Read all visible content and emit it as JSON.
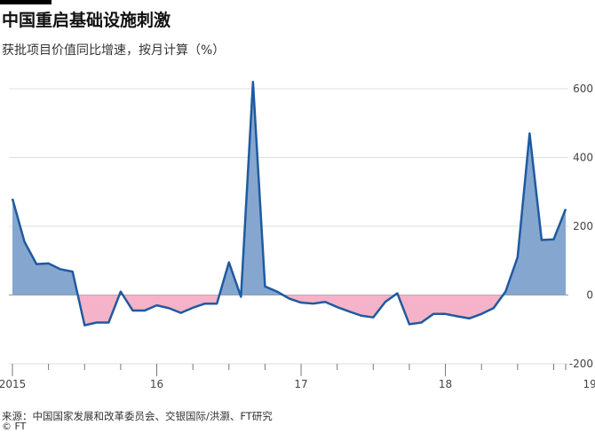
{
  "title": "中国重启基础设施刺激",
  "subtitle": "获批项目价值同比增速，按月计算（%）",
  "source": "来源：中国国家发展和改革委员会、交银国际/洪灏、FT研究",
  "credit": "© FT",
  "colors": {
    "line": "#1f5aa0",
    "positive_fill": "#85a7cf",
    "negative_fill": "#f4b3c8",
    "grid": "#dcdcdc",
    "zero_line": "#999999"
  },
  "chart_data": {
    "type": "area",
    "title": "中国重启基础设施刺激",
    "subtitle": "获批项目价值同比增速，按月计算（%）",
    "ylim": [
      -200,
      600
    ],
    "yticks": [
      -200,
      0,
      200,
      400,
      600
    ],
    "ytick_labels": [
      "-200",
      "0",
      "200",
      "400",
      "600"
    ],
    "xticks": [
      "2015",
      "16",
      "17",
      "18",
      "19"
    ],
    "x_start": "2015-01",
    "x_end": "2019-04",
    "grid": true,
    "series": [
      {
        "values": [
          280,
          155,
          90,
          92,
          75,
          68,
          -88,
          -80,
          -80,
          10,
          -45,
          -45,
          -30,
          -38,
          -52,
          -37,
          -25,
          -25,
          95,
          -5,
          620,
          25,
          10,
          -10,
          -22,
          -25,
          -20,
          -35,
          -48,
          -60,
          -65,
          -20,
          5,
          -85,
          -80,
          -55,
          -55,
          -62,
          -68,
          -55,
          -38,
          10,
          110,
          470,
          160,
          162,
          250
        ]
      }
    ]
  }
}
